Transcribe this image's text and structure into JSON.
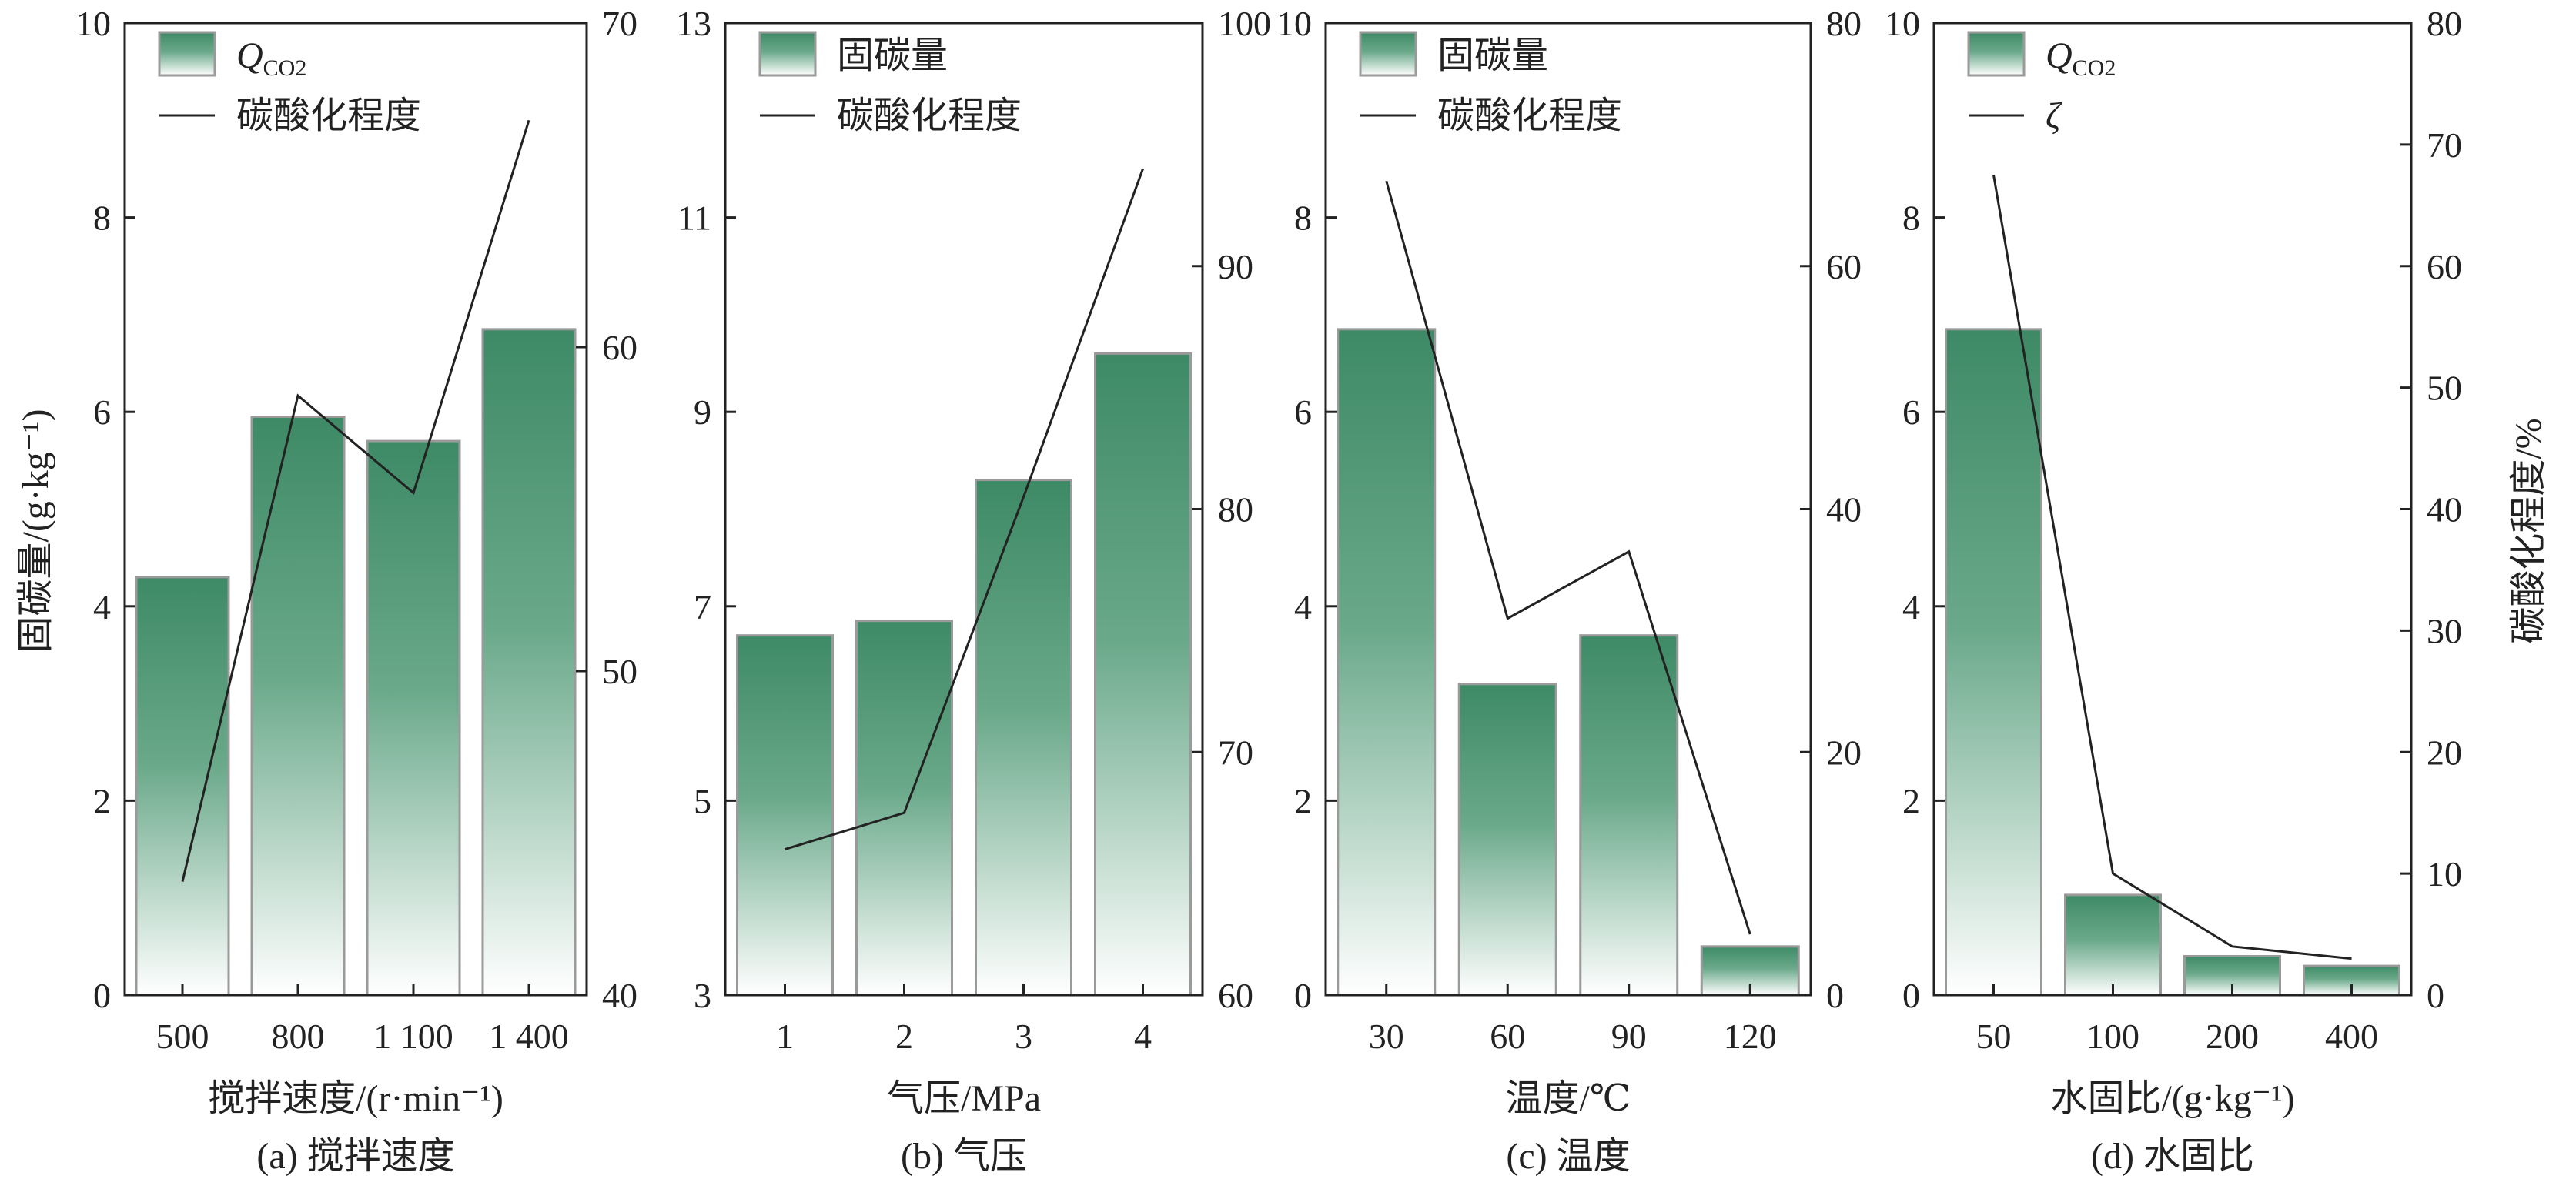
{
  "y_axis_left_label": "固碳量/(g·kg⁻¹)",
  "y_axis_right_label": "碳酸化程度/%",
  "colors": {
    "bar_top": "#3e8a66",
    "bar_bottom": "#ffffff",
    "bar_edge": "#9a9a9a",
    "line": "#222222",
    "axis": "#222222"
  },
  "chart_data": [
    {
      "type": "bar",
      "caption": "(a) 搅拌速度",
      "xlabel": "搅拌速度/(r·min⁻¹)",
      "categories": [
        "500",
        "800",
        "1 100",
        "1 400"
      ],
      "ylim": [
        0,
        10
      ],
      "yticks": [
        0,
        2,
        4,
        6,
        8,
        10
      ],
      "y2lim": [
        40,
        70
      ],
      "y2ticks": [
        40,
        50,
        60,
        70
      ],
      "series": [
        {
          "name": "Q_CO2",
          "legend_main": "Q",
          "legend_sub": "CO2",
          "kind": "bar",
          "axis": "left",
          "values": [
            4.3,
            5.95,
            5.7,
            6.85
          ]
        },
        {
          "name": "碳酸化程度",
          "legend_text": "碳酸化程度",
          "kind": "line",
          "axis": "right",
          "values": [
            43.5,
            58.5,
            55.5,
            67.0
          ]
        }
      ]
    },
    {
      "type": "bar",
      "caption": "(b) 气压",
      "xlabel": "气压/MPa",
      "categories": [
        "1",
        "2",
        "3",
        "4"
      ],
      "ylim": [
        3,
        13
      ],
      "yticks": [
        3,
        5,
        7,
        9,
        11,
        13
      ],
      "y2lim": [
        60,
        100
      ],
      "y2ticks": [
        60,
        70,
        80,
        90,
        100
      ],
      "series": [
        {
          "name": "固碳量",
          "legend_text": "固碳量",
          "kind": "bar",
          "axis": "left",
          "values": [
            6.7,
            6.85,
            8.3,
            9.6
          ]
        },
        {
          "name": "碳酸化程度",
          "legend_text": "碳酸化程度",
          "kind": "line",
          "axis": "right",
          "values": [
            66.0,
            67.5,
            80.5,
            94.0
          ]
        }
      ]
    },
    {
      "type": "bar",
      "caption": "(c) 温度",
      "xlabel": "温度/℃",
      "categories": [
        "30",
        "60",
        "90",
        "120"
      ],
      "ylim": [
        0,
        10
      ],
      "yticks": [
        0,
        2,
        4,
        6,
        8,
        10
      ],
      "y2lim": [
        0,
        80
      ],
      "y2ticks": [
        0,
        20,
        40,
        60,
        80
      ],
      "series": [
        {
          "name": "固碳量",
          "legend_text": "固碳量",
          "kind": "bar",
          "axis": "left",
          "values": [
            6.85,
            3.2,
            3.7,
            0.5
          ]
        },
        {
          "name": "碳酸化程度",
          "legend_text": "碳酸化程度",
          "kind": "line",
          "axis": "right",
          "values": [
            67.0,
            31.0,
            36.5,
            5.0
          ]
        }
      ]
    },
    {
      "type": "bar",
      "caption": "(d) 水固比",
      "xlabel": "水固比/(g·kg⁻¹)",
      "categories": [
        "50",
        "100",
        "200",
        "400"
      ],
      "ylim": [
        0,
        10
      ],
      "yticks": [
        0,
        2,
        4,
        6,
        8,
        10
      ],
      "y2lim": [
        0,
        80
      ],
      "y2ticks": [
        0,
        10,
        20,
        30,
        40,
        50,
        60,
        70,
        80
      ],
      "series": [
        {
          "name": "Q_CO2",
          "legend_main": "Q",
          "legend_sub": "CO2",
          "kind": "bar",
          "axis": "left",
          "values": [
            6.85,
            1.03,
            0.4,
            0.3
          ]
        },
        {
          "name": "ζ",
          "legend_text": "ζ",
          "legend_italic": true,
          "kind": "line",
          "axis": "right",
          "values": [
            67.5,
            10.0,
            4.0,
            3.0
          ]
        }
      ]
    }
  ]
}
